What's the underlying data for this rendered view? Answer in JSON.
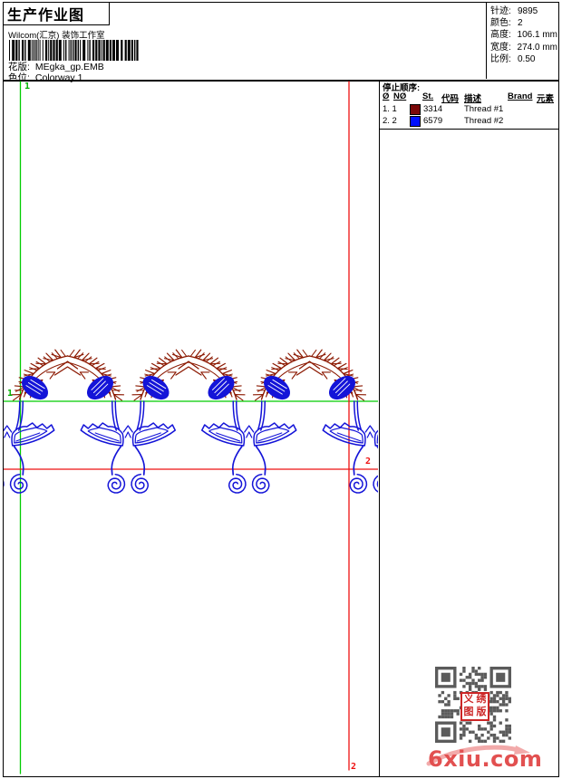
{
  "header": {
    "title": "生产作业图",
    "studio": "Wilcom(汇京) 装饰工作室",
    "pattern_label": "花版:",
    "pattern_value": "MEgka_gp.EMB",
    "colorway_label": "色位:",
    "colorway_value": "Colorway 1",
    "stats": [
      {
        "label": "针迹:",
        "value": "9895"
      },
      {
        "label": "颜色:",
        "value": "2"
      },
      {
        "label": "高度:",
        "value": "106.1 mm"
      },
      {
        "label": "宽度:",
        "value": "274.0 mm"
      },
      {
        "label": "比例:",
        "value": "0.50"
      }
    ]
  },
  "stop_table": {
    "title": "停止顺序:",
    "columns": [
      "Ø",
      "NØ",
      "St.",
      "代码",
      "描述",
      "Brand",
      "元素"
    ],
    "rows": [
      {
        "no": "1. 1",
        "swatch": "#7a0808",
        "code": "3314",
        "desc": "Thread #1"
      },
      {
        "no": "2. 2",
        "swatch": "#0010ff",
        "code": "6579",
        "desc": "Thread #2"
      }
    ]
  },
  "design": {
    "markers": {
      "green_top": "1",
      "green_left": "1",
      "red_mid": "2",
      "red_bottom": "2"
    },
    "colors": {
      "thread1": "#8b1800",
      "thread2": "#1414d8",
      "guide_green": "#00cc00",
      "guide_red": "#ee1111"
    }
  },
  "watermark": {
    "text": "6xiu.com",
    "stamp": "义绣图版",
    "qr_color": "#5b5b5b",
    "text_color": "#e25050",
    "swoosh_color": "#f2aaaa"
  }
}
